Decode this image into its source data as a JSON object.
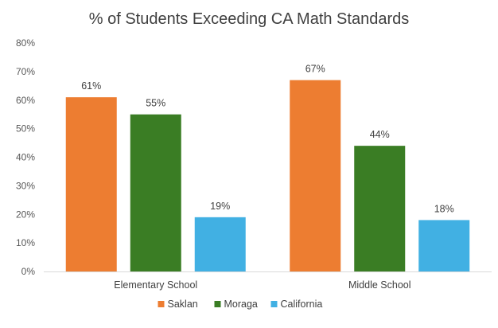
{
  "chart_data": {
    "type": "bar",
    "title": "% of Students Exceeding CA Math  Standards",
    "xlabel": "",
    "ylabel": "",
    "categories": [
      "Elementary School",
      "Middle School"
    ],
    "series": [
      {
        "name": "Saklan",
        "color": "#ED7D31",
        "values": [
          61,
          67
        ],
        "labels": [
          "61%",
          "67%"
        ]
      },
      {
        "name": "Moraga",
        "color": "#3A7D24",
        "values": [
          55,
          44
        ],
        "labels": [
          "55%",
          "44%"
        ]
      },
      {
        "name": "California",
        "color": "#41B0E3",
        "values": [
          19,
          18
        ],
        "labels": [
          "19%",
          "18%"
        ]
      }
    ],
    "ylim": [
      0,
      80
    ],
    "yticks": [
      "0%",
      "10%",
      "20%",
      "30%",
      "40%",
      "50%",
      "60%",
      "70%",
      "80%"
    ],
    "grid": false,
    "legend_position": "bottom",
    "axis_color": "#D9D9D9"
  }
}
